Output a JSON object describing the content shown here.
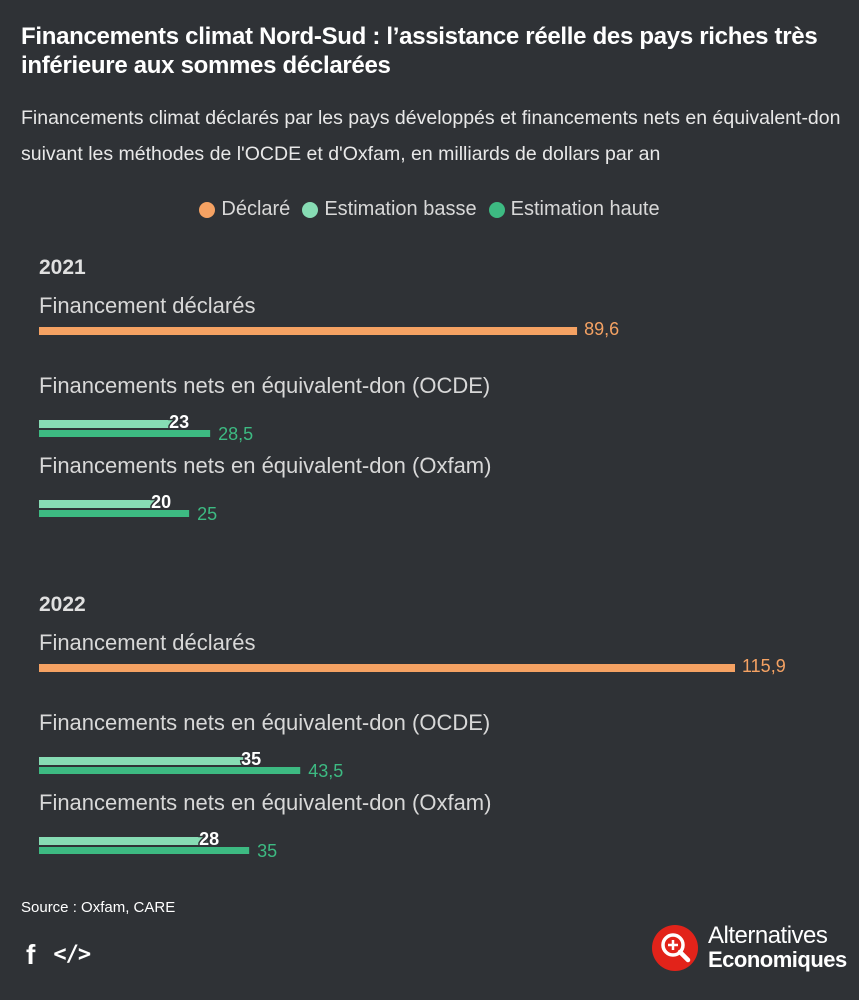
{
  "title": "Financements climat Nord-Sud : l’assistance réelle des pays riches très inférieure aux sommes déclarées",
  "subtitle": "Financements climat déclarés par les pays développés et financements nets en équivalent-don suivant les méthodes de l'OCDE et d'Oxfam, en milliards de dollars par an",
  "source": "Source : Oxfam, CARE",
  "share": {
    "facebook_icon": "f",
    "embed_icon": "</>"
  },
  "logo": {
    "line1": "Alternatives",
    "line2": "Economiques"
  },
  "colors": {
    "declared": "#f5a263",
    "low": "#87dcb4",
    "high": "#3dba82",
    "background": "#2f3236"
  },
  "chart_data": {
    "type": "bar",
    "orientation": "horizontal",
    "unit": "milliards de dollars par an",
    "legend": [
      "Déclaré",
      "Estimation basse",
      "Estimation haute"
    ],
    "legend_position": "top-center",
    "xlim": [
      0,
      115.9
    ],
    "groups": [
      {
        "year": "2021",
        "rows": [
          {
            "label": "Financement déclarés",
            "bars": [
              {
                "series": "Déclaré",
                "value": 89.6,
                "text": "89,6"
              }
            ]
          },
          {
            "label": "Financements nets en équivalent-don (OCDE)",
            "bars": [
              {
                "series": "Estimation basse",
                "value": 23,
                "text": "23"
              },
              {
                "series": "Estimation haute",
                "value": 28.5,
                "text": "28,5"
              }
            ]
          },
          {
            "label": "Financements nets en équivalent-don (Oxfam)",
            "bars": [
              {
                "series": "Estimation basse",
                "value": 20,
                "text": "20"
              },
              {
                "series": "Estimation haute",
                "value": 25,
                "text": "25"
              }
            ]
          }
        ]
      },
      {
        "year": "2022",
        "rows": [
          {
            "label": "Financement déclarés",
            "bars": [
              {
                "series": "Déclaré",
                "value": 115.9,
                "text": "115,9"
              }
            ]
          },
          {
            "label": "Financements nets en équivalent-don (OCDE)",
            "bars": [
              {
                "series": "Estimation basse",
                "value": 35,
                "text": "35"
              },
              {
                "series": "Estimation haute",
                "value": 43.5,
                "text": "43,5"
              }
            ]
          },
          {
            "label": "Financements nets en équivalent-don (Oxfam)",
            "bars": [
              {
                "series": "Estimation basse",
                "value": 28,
                "text": "28"
              },
              {
                "series": "Estimation haute",
                "value": 35,
                "text": "35"
              }
            ]
          }
        ]
      }
    ]
  }
}
